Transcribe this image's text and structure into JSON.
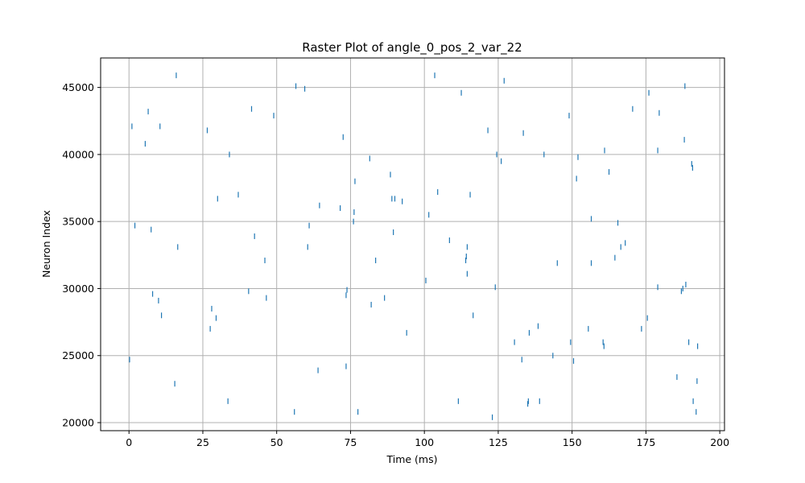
{
  "chart_data": {
    "type": "scatter",
    "title": "Raster Plot of angle_0_pos_2_var_22",
    "xlabel": "Time (ms)",
    "ylabel": "Neuron Index",
    "xlim": [
      -9.6,
      201.6
    ],
    "ylim": [
      19400,
      47200
    ],
    "xticks": [
      0,
      25,
      50,
      75,
      100,
      125,
      150,
      175,
      200
    ],
    "yticks": [
      20000,
      25000,
      30000,
      35000,
      40000,
      45000
    ],
    "grid": true,
    "marker": "vertical-line",
    "color": "#1f77b4",
    "series": [
      {
        "points": [
          [
            0.2,
            24700
          ],
          [
            1.0,
            42100
          ],
          [
            2.0,
            34700
          ],
          [
            5.5,
            40800
          ],
          [
            6.5,
            43200
          ],
          [
            7.5,
            34400
          ],
          [
            8.0,
            29600
          ],
          [
            10.0,
            29100
          ],
          [
            10.5,
            42100
          ],
          [
            11.0,
            28000
          ],
          [
            15.5,
            22900
          ],
          [
            16.0,
            45900
          ],
          [
            16.5,
            33100
          ],
          [
            26.5,
            41800
          ],
          [
            27.5,
            27000
          ],
          [
            28.0,
            28500
          ],
          [
            29.5,
            27800
          ],
          [
            30.0,
            36700
          ],
          [
            33.5,
            21600
          ],
          [
            34.0,
            40000
          ],
          [
            37.0,
            37000
          ],
          [
            40.5,
            29800
          ],
          [
            41.5,
            43400
          ],
          [
            42.5,
            33900
          ],
          [
            46.0,
            32100
          ],
          [
            46.5,
            29300
          ],
          [
            49.0,
            42900
          ],
          [
            56.0,
            20800
          ],
          [
            56.5,
            45100
          ],
          [
            59.5,
            44900
          ],
          [
            60.5,
            33100
          ],
          [
            61.0,
            34700
          ],
          [
            64.0,
            23900
          ],
          [
            64.5,
            36200
          ],
          [
            71.5,
            36000
          ],
          [
            72.5,
            41300
          ],
          [
            73.5,
            24200
          ],
          [
            73.5,
            29500
          ],
          [
            73.8,
            29900
          ],
          [
            76.0,
            35000
          ],
          [
            76.2,
            35700
          ],
          [
            76.5,
            38000
          ],
          [
            77.5,
            20800
          ],
          [
            81.5,
            39700
          ],
          [
            82.0,
            28800
          ],
          [
            83.5,
            32100
          ],
          [
            86.5,
            29300
          ],
          [
            88.5,
            38500
          ],
          [
            89.0,
            36700
          ],
          [
            89.5,
            34200
          ],
          [
            90.0,
            36700
          ],
          [
            92.5,
            36500
          ],
          [
            94.0,
            26700
          ],
          [
            100.5,
            30600
          ],
          [
            101.5,
            35500
          ],
          [
            103.5,
            45900
          ],
          [
            104.5,
            37200
          ],
          [
            108.5,
            33600
          ],
          [
            111.5,
            21600
          ],
          [
            112.5,
            44600
          ],
          [
            114.0,
            32100
          ],
          [
            114.2,
            32400
          ],
          [
            114.5,
            33100
          ],
          [
            114.5,
            31100
          ],
          [
            115.5,
            37000
          ],
          [
            116.5,
            28000
          ],
          [
            121.5,
            41800
          ],
          [
            123.0,
            20400
          ],
          [
            124.0,
            30100
          ],
          [
            124.5,
            40000
          ],
          [
            126.0,
            39500
          ],
          [
            127.0,
            45500
          ],
          [
            130.5,
            26000
          ],
          [
            133.0,
            24700
          ],
          [
            133.5,
            41600
          ],
          [
            135.0,
            21400
          ],
          [
            135.2,
            21600
          ],
          [
            135.5,
            26700
          ],
          [
            138.5,
            27200
          ],
          [
            139.0,
            21600
          ],
          [
            140.5,
            40000
          ],
          [
            143.5,
            25000
          ],
          [
            145.0,
            31900
          ],
          [
            149.0,
            42900
          ],
          [
            149.5,
            26000
          ],
          [
            150.5,
            24600
          ],
          [
            151.5,
            38200
          ],
          [
            152.0,
            39800
          ],
          [
            155.5,
            27000
          ],
          [
            156.5,
            35200
          ],
          [
            156.5,
            31900
          ],
          [
            160.5,
            26000
          ],
          [
            160.8,
            25700
          ],
          [
            161.0,
            40300
          ],
          [
            162.5,
            38700
          ],
          [
            164.5,
            32300
          ],
          [
            165.5,
            34900
          ],
          [
            166.5,
            33100
          ],
          [
            168.0,
            33400
          ],
          [
            170.5,
            43400
          ],
          [
            173.5,
            27000
          ],
          [
            175.5,
            27800
          ],
          [
            176.0,
            44600
          ],
          [
            179.0,
            30100
          ],
          [
            179.0,
            40300
          ],
          [
            179.5,
            43100
          ],
          [
            185.5,
            23400
          ],
          [
            187.0,
            29800
          ],
          [
            187.5,
            30000
          ],
          [
            188.0,
            41100
          ],
          [
            188.2,
            45100
          ],
          [
            188.5,
            30300
          ],
          [
            189.5,
            26000
          ],
          [
            190.5,
            39300
          ],
          [
            190.8,
            39000
          ],
          [
            191.0,
            21600
          ],
          [
            192.0,
            20800
          ],
          [
            192.3,
            23100
          ],
          [
            192.5,
            25700
          ]
        ]
      }
    ]
  }
}
